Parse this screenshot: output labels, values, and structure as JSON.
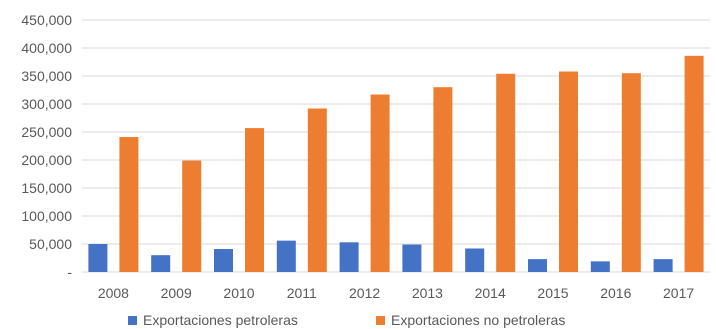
{
  "chart_data": {
    "type": "bar",
    "categories": [
      "2008",
      "2009",
      "2010",
      "2011",
      "2012",
      "2013",
      "2014",
      "2015",
      "2016",
      "2017"
    ],
    "series": [
      {
        "name": "Exportaciones petroleras",
        "color": "#4472C4",
        "values": [
          50000,
          30000,
          41000,
          56000,
          53000,
          49000,
          42000,
          23000,
          19000,
          23000
        ]
      },
      {
        "name": "Exportaciones no petroleras",
        "color": "#ED7D31",
        "values": [
          241000,
          199000,
          257000,
          292000,
          317000,
          330000,
          354000,
          358000,
          355000,
          386000
        ]
      }
    ],
    "y_ticks": [
      "-",
      "50,000",
      "100,000",
      "150,000",
      "200,000",
      "250,000",
      "300,000",
      "350,000",
      "400,000",
      "450,000"
    ],
    "ylim": [
      0,
      450000
    ],
    "grid": true,
    "gridline_color": "#d9d9d9",
    "legend_position": "bottom",
    "title": "",
    "xlabel": "",
    "ylabel": ""
  }
}
